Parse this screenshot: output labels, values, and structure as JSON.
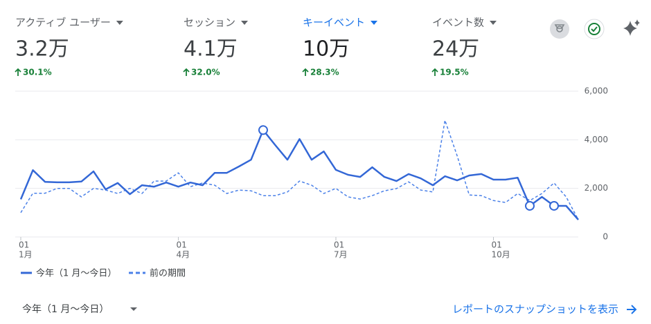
{
  "metrics": [
    {
      "label": "アクティブ ユーザー",
      "value": "3.2万",
      "change": "30.1%"
    },
    {
      "label": "セッション",
      "value": "4.1万",
      "change": "32.0%"
    },
    {
      "label": "キーイベント",
      "value": "10万",
      "change": "28.3%",
      "selected": true
    },
    {
      "label": "イベント数",
      "value": "24万",
      "change": "19.5%"
    }
  ],
  "chart_data": {
    "type": "line",
    "categories": [
      "1月",
      null,
      null,
      null,
      null,
      null,
      null,
      null,
      null,
      null,
      null,
      null,
      null,
      "4月",
      null,
      null,
      null,
      null,
      null,
      null,
      null,
      null,
      null,
      null,
      null,
      null,
      "7月",
      null,
      null,
      null,
      null,
      null,
      null,
      null,
      null,
      null,
      null,
      null,
      null,
      "10月",
      null,
      null,
      null,
      null,
      null,
      null,
      null
    ],
    "category_days": [
      "01",
      null,
      null,
      null,
      null,
      null,
      null,
      null,
      null,
      null,
      null,
      null,
      null,
      "01",
      null,
      null,
      null,
      null,
      null,
      null,
      null,
      null,
      null,
      null,
      null,
      null,
      "01",
      null,
      null,
      null,
      null,
      null,
      null,
      null,
      null,
      null,
      null,
      null,
      null,
      "01",
      null,
      null,
      null,
      null,
      null,
      null,
      null
    ],
    "series": [
      {
        "name": "今年（1 月～今日）",
        "color": "#3367d6",
        "dashed": false,
        "values": [
          1550,
          2750,
          2270,
          2250,
          2250,
          2280,
          2700,
          1960,
          2220,
          1760,
          2130,
          2070,
          2240,
          2070,
          2240,
          2130,
          2640,
          2640,
          2900,
          3180,
          4400,
          3780,
          3180,
          4030,
          3180,
          3520,
          2760,
          2560,
          2470,
          2870,
          2470,
          2300,
          2590,
          2410,
          2130,
          2500,
          2330,
          2530,
          2590,
          2360,
          2360,
          2440,
          1280,
          1650,
          1280,
          1280,
          710
        ],
        "markers": [
          20,
          42,
          44
        ]
      },
      {
        "name": "前の期間",
        "color": "#4a80e8",
        "dashed": true,
        "values": [
          1000,
          1800,
          1800,
          2000,
          2000,
          1650,
          2000,
          1930,
          1790,
          2000,
          1790,
          2300,
          2300,
          2640,
          2070,
          2220,
          2130,
          1790,
          1930,
          1900,
          1700,
          1700,
          1850,
          2300,
          2130,
          1790,
          2000,
          1650,
          1560,
          1700,
          1900,
          1990,
          2270,
          1930,
          1850,
          4800,
          3350,
          1730,
          1700,
          1500,
          1420,
          1790,
          1500,
          1790,
          2220,
          1650,
          710
        ]
      }
    ],
    "ylim": [
      0,
      6000
    ],
    "yticks": [
      0,
      {
        "value": 2000,
        "label": "2,000"
      },
      {
        "value": 4000,
        "label": "4,000"
      },
      {
        "value": 6000,
        "label": "6,000"
      }
    ],
    "grid": true
  },
  "footer": {
    "period": "今年（1 月～今日）",
    "link": "レポートのスナップショットを表示"
  }
}
